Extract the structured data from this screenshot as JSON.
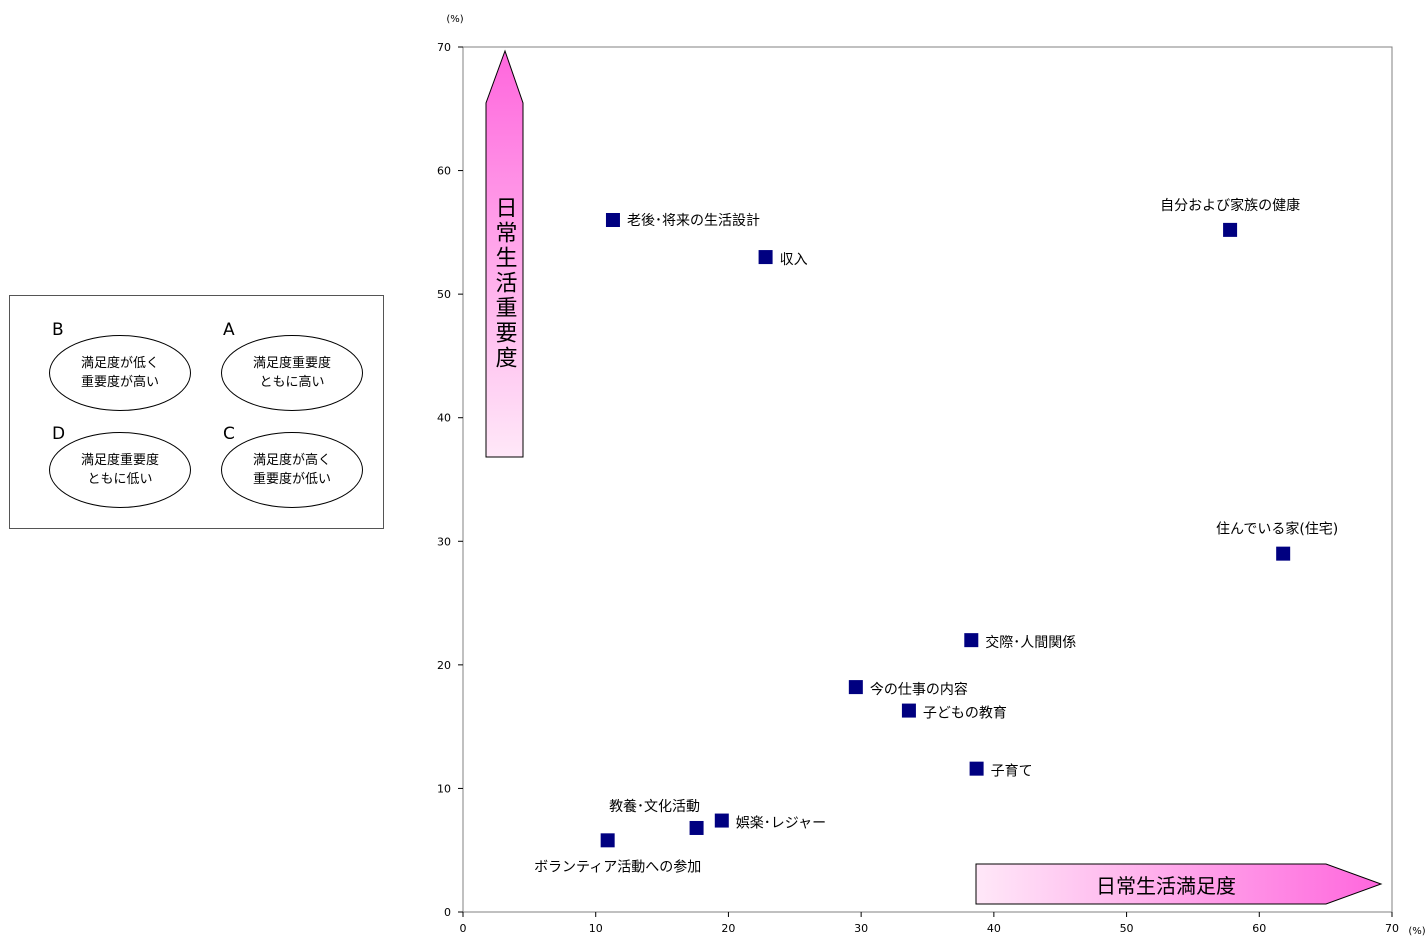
{
  "legend_box": {
    "quadrants": [
      {
        "letter": "B",
        "line1": "満足度が低く",
        "line2": "重要度が高い"
      },
      {
        "letter": "A",
        "line1": "満足度重要度",
        "line2": "ともに高い"
      },
      {
        "letter": "D",
        "line1": "満足度重要度",
        "line2": "ともに低い"
      },
      {
        "letter": "C",
        "line1": "満足度が高く",
        "line2": "重要度が低い"
      }
    ]
  },
  "chart_data": {
    "type": "scatter",
    "xlabel": "日常生活満足度",
    "ylabel": "日常生活重要度",
    "x_unit": "(%)",
    "y_unit": "(%)",
    "xlim": [
      0,
      70
    ],
    "ylim": [
      0,
      70
    ],
    "xticks": [
      0,
      10,
      20,
      30,
      40,
      50,
      60,
      70
    ],
    "yticks": [
      0,
      10,
      20,
      30,
      40,
      50,
      60,
      70
    ],
    "grid": false,
    "marker_color": "#000080",
    "arrow_gradient": [
      "#ffe8f8",
      "#ff66dd"
    ],
    "points": [
      {
        "label": "老後･将来の生活設計",
        "x": 11.3,
        "y": 56.0
      },
      {
        "label": "収入",
        "x": 22.8,
        "y": 53.0
      },
      {
        "label": "自分および家族の健康",
        "x": 57.8,
        "y": 55.2
      },
      {
        "label": "住んでいる家(住宅)",
        "x": 61.8,
        "y": 29.0
      },
      {
        "label": "交際･人間関係",
        "x": 38.3,
        "y": 22.0
      },
      {
        "label": "今の仕事の内容",
        "x": 29.6,
        "y": 18.2
      },
      {
        "label": "子どもの教育",
        "x": 33.6,
        "y": 16.3
      },
      {
        "label": "子育て",
        "x": 38.7,
        "y": 11.6
      },
      {
        "label": "教養･文化活動",
        "x": 17.6,
        "y": 6.8
      },
      {
        "label": "娯楽･レジャー",
        "x": 19.5,
        "y": 7.4
      },
      {
        "label": "ボランティア活動への参加",
        "x": 10.9,
        "y": 5.8
      }
    ]
  }
}
